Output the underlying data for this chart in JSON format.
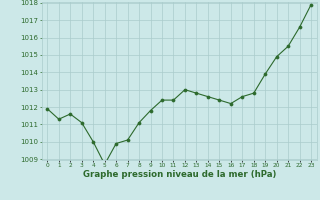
{
  "x": [
    0,
    1,
    2,
    3,
    4,
    5,
    6,
    7,
    8,
    9,
    10,
    11,
    12,
    13,
    14,
    15,
    16,
    17,
    18,
    19,
    20,
    21,
    22,
    23
  ],
  "y": [
    1011.9,
    1011.3,
    1011.6,
    1011.1,
    1010.0,
    1008.7,
    1009.9,
    1010.1,
    1011.1,
    1011.8,
    1012.4,
    1012.4,
    1013.0,
    1012.8,
    1012.6,
    1012.4,
    1012.2,
    1012.6,
    1012.8,
    1013.9,
    1014.9,
    1015.5,
    1016.6,
    1017.9
  ],
  "line_color": "#2d6a2d",
  "marker_color": "#2d6a2d",
  "bg_color": "#cce8e8",
  "grid_color": "#aacccc",
  "xlabel": "Graphe pression niveau de la mer (hPa)",
  "xlabel_color": "#2d6a2d",
  "tick_color": "#2d6a2d",
  "ylim": [
    1009,
    1018
  ],
  "xlim": [
    -0.5,
    23.5
  ],
  "yticks": [
    1009,
    1010,
    1011,
    1012,
    1013,
    1014,
    1015,
    1016,
    1017,
    1018
  ],
  "xtick_labels": [
    "0",
    "1",
    "2",
    "3",
    "4",
    "5",
    "6",
    "7",
    "8",
    "9",
    "10",
    "11",
    "12",
    "13",
    "14",
    "15",
    "16",
    "17",
    "18",
    "19",
    "20",
    "21",
    "22",
    "23"
  ],
  "ytick_fontsize": 5.0,
  "xtick_fontsize": 4.2,
  "xlabel_fontsize": 6.2,
  "linewidth": 0.8,
  "markersize": 2.2
}
